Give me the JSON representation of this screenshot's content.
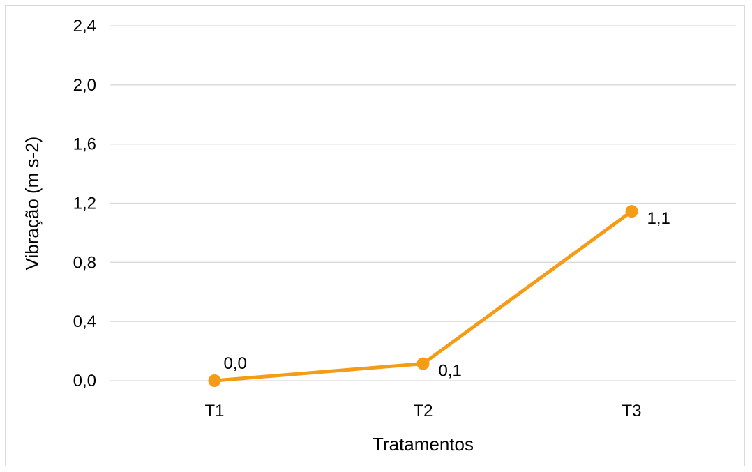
{
  "chart_data": {
    "type": "line",
    "categories": [
      "T1",
      "T2",
      "T3"
    ],
    "series": [
      {
        "values": [
          0.0,
          0.115,
          1.145
        ],
        "data_labels": [
          "0,0",
          "0,1",
          "1,1"
        ],
        "color": "#f59c16"
      }
    ],
    "title": "",
    "xlabel": "Tratamentos",
    "ylabel": "Vibração (m s-2)",
    "ylim": [
      0,
      2.4
    ],
    "yticks": [
      0.0,
      0.4,
      0.8,
      1.2,
      1.6,
      2.0,
      2.4
    ],
    "ytick_labels": [
      "0,0",
      "0,4",
      "0,8",
      "1,2",
      "1,6",
      "2,0",
      "2,4"
    ],
    "grid": "horizontal",
    "gridline_color": "#d9d9d9",
    "legend": "none"
  }
}
